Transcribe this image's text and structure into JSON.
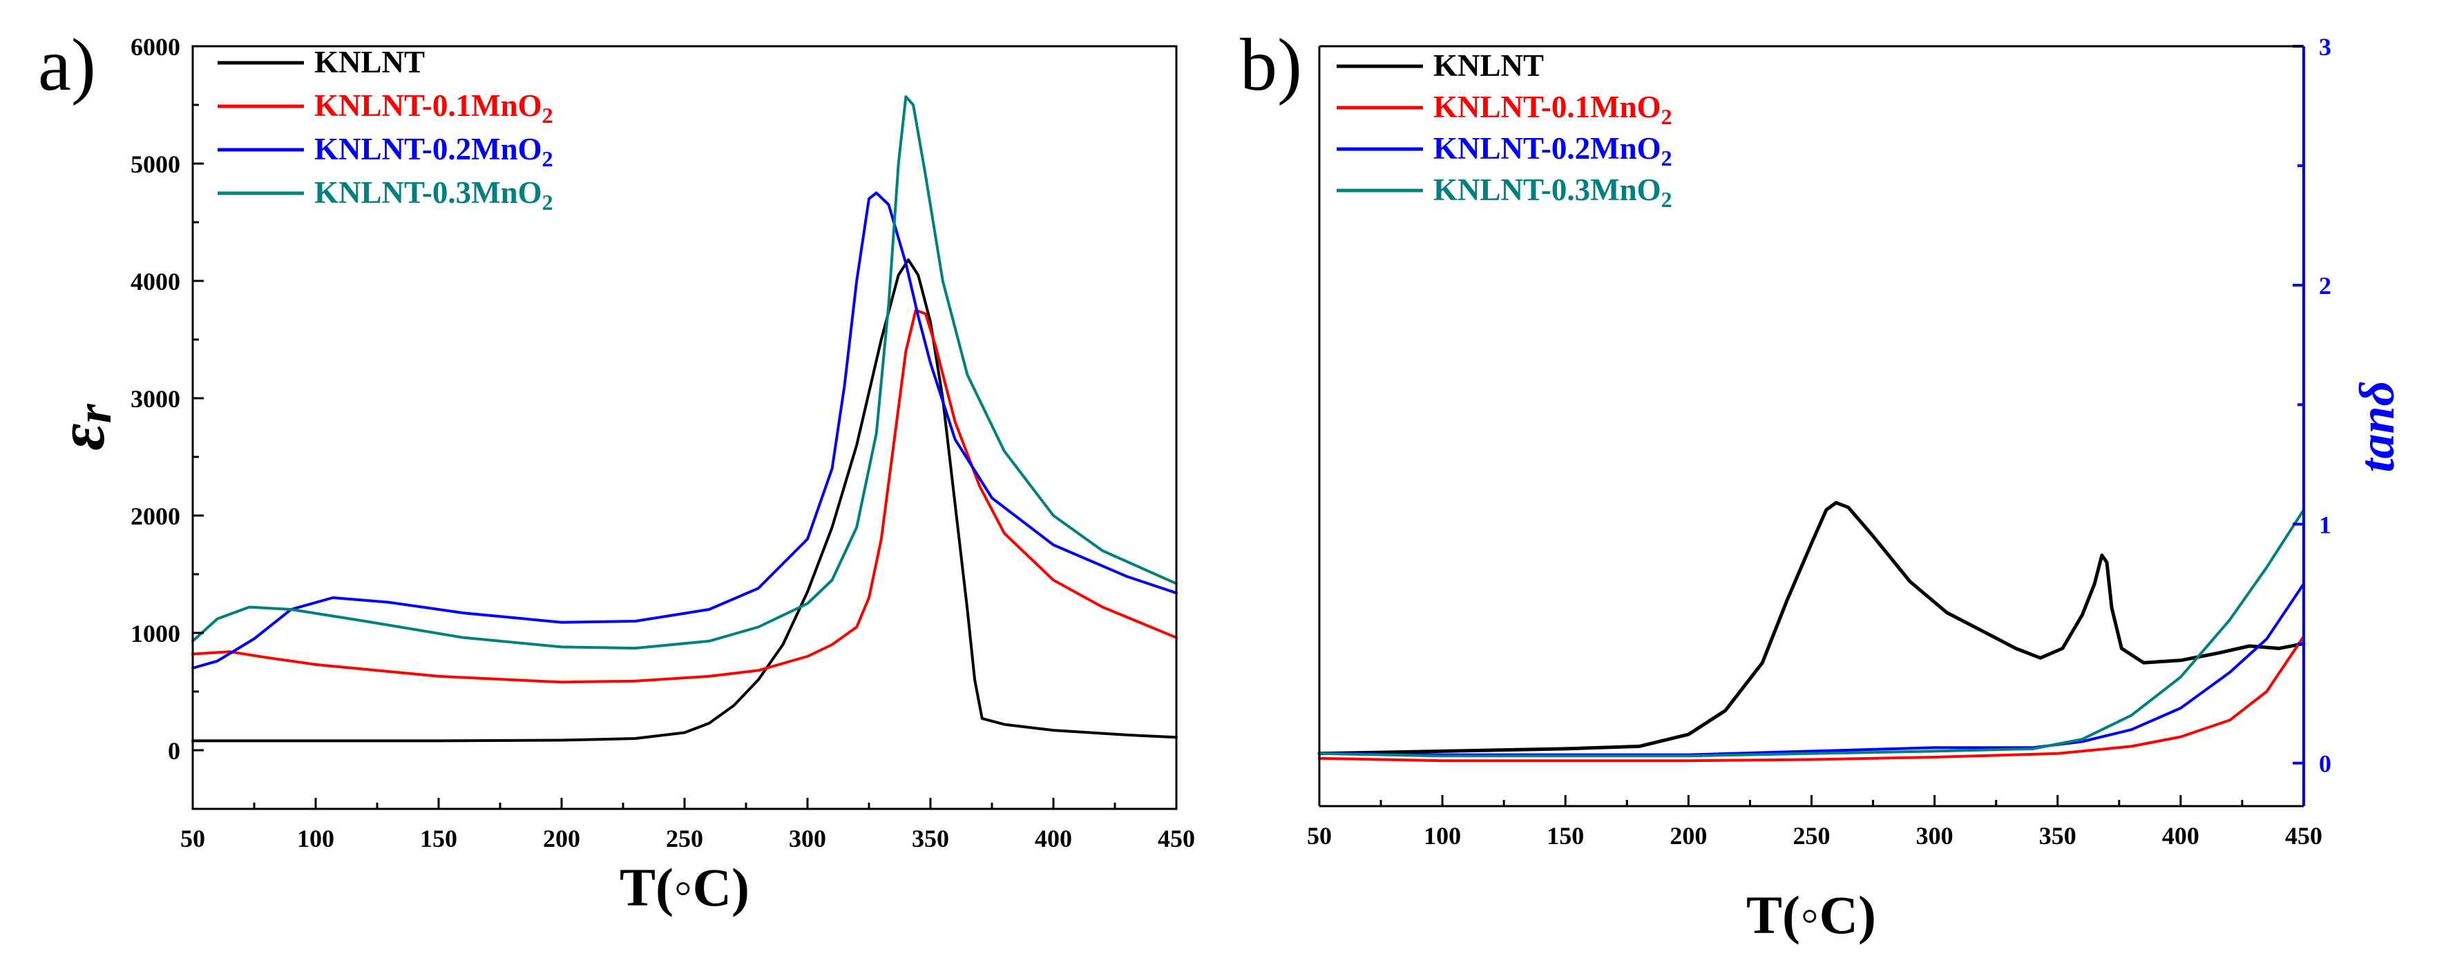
{
  "colors": {
    "KNLNT": "#000000",
    "KNLNT-0.1MnO2": "#ff0000",
    "KNLNT-0.2MnO2": "#0000ff",
    "KNLNT-0.3MnO2": "#008080",
    "right_axis": "#0000ff"
  },
  "chart_data": [
    {
      "type": "line",
      "panel_label": "a)",
      "xlabel": "T(◦C)",
      "ylabel": "εr",
      "xlim": [
        50,
        450
      ],
      "ylim": [
        -500,
        6000
      ],
      "xticks": [
        50,
        100,
        150,
        200,
        250,
        300,
        350,
        400,
        450
      ],
      "yticks": [
        0,
        1000,
        2000,
        3000,
        4000,
        5000,
        6000
      ],
      "legend": {
        "position": "top-left",
        "entries": [
          "KNLNT",
          "KNLNT-0.1MnO2",
          "KNLNT-0.2MnO2",
          "KNLNT-0.3MnO2"
        ]
      },
      "series": [
        {
          "name": "KNLNT",
          "points": [
            [
              50,
              80
            ],
            [
              100,
              80
            ],
            [
              150,
              80
            ],
            [
              200,
              85
            ],
            [
              230,
              100
            ],
            [
              250,
              150
            ],
            [
              260,
              230
            ],
            [
              270,
              380
            ],
            [
              280,
              600
            ],
            [
              290,
              900
            ],
            [
              300,
              1350
            ],
            [
              310,
              1900
            ],
            [
              320,
              2600
            ],
            [
              330,
              3500
            ],
            [
              337,
              4050
            ],
            [
              341,
              4180
            ],
            [
              345,
              4050
            ],
            [
              350,
              3650
            ],
            [
              355,
              3000
            ],
            [
              360,
              2100
            ],
            [
              365,
              1200
            ],
            [
              368,
              600
            ],
            [
              371,
              270
            ],
            [
              380,
              220
            ],
            [
              400,
              170
            ],
            [
              430,
              130
            ],
            [
              450,
              110
            ]
          ]
        },
        {
          "name": "KNLNT-0.1MnO2",
          "points": [
            [
              50,
              820
            ],
            [
              65,
              840
            ],
            [
              80,
              790
            ],
            [
              100,
              730
            ],
            [
              150,
              630
            ],
            [
              200,
              580
            ],
            [
              230,
              590
            ],
            [
              260,
              630
            ],
            [
              280,
              680
            ],
            [
              300,
              800
            ],
            [
              310,
              900
            ],
            [
              320,
              1050
            ],
            [
              325,
              1300
            ],
            [
              330,
              1800
            ],
            [
              335,
              2600
            ],
            [
              340,
              3400
            ],
            [
              344,
              3750
            ],
            [
              348,
              3720
            ],
            [
              352,
              3450
            ],
            [
              360,
              2800
            ],
            [
              370,
              2250
            ],
            [
              380,
              1850
            ],
            [
              400,
              1450
            ],
            [
              420,
              1220
            ],
            [
              450,
              960
            ]
          ]
        },
        {
          "name": "KNLNT-0.2MnO2",
          "points": [
            [
              50,
              700
            ],
            [
              60,
              760
            ],
            [
              75,
              950
            ],
            [
              90,
              1200
            ],
            [
              107,
              1300
            ],
            [
              130,
              1260
            ],
            [
              160,
              1170
            ],
            [
              200,
              1090
            ],
            [
              230,
              1100
            ],
            [
              260,
              1200
            ],
            [
              280,
              1380
            ],
            [
              300,
              1800
            ],
            [
              310,
              2400
            ],
            [
              315,
              3100
            ],
            [
              320,
              4000
            ],
            [
              325,
              4700
            ],
            [
              328,
              4750
            ],
            [
              333,
              4650
            ],
            [
              340,
              4150
            ],
            [
              345,
              3700
            ],
            [
              350,
              3300
            ],
            [
              360,
              2650
            ],
            [
              375,
              2150
            ],
            [
              400,
              1750
            ],
            [
              430,
              1480
            ],
            [
              450,
              1340
            ]
          ]
        },
        {
          "name": "KNLNT-0.3MnO2",
          "points": [
            [
              50,
              930
            ],
            [
              60,
              1120
            ],
            [
              73,
              1220
            ],
            [
              90,
              1200
            ],
            [
              120,
              1100
            ],
            [
              160,
              960
            ],
            [
              200,
              880
            ],
            [
              230,
              870
            ],
            [
              260,
              930
            ],
            [
              280,
              1050
            ],
            [
              300,
              1250
            ],
            [
              310,
              1450
            ],
            [
              320,
              1900
            ],
            [
              328,
              2700
            ],
            [
              333,
              3800
            ],
            [
              337,
              5000
            ],
            [
              340,
              5570
            ],
            [
              343,
              5500
            ],
            [
              348,
              4900
            ],
            [
              355,
              4000
            ],
            [
              365,
              3200
            ],
            [
              380,
              2550
            ],
            [
              400,
              2000
            ],
            [
              420,
              1700
            ],
            [
              450,
              1420
            ]
          ]
        }
      ]
    },
    {
      "type": "line",
      "panel_label": "b)",
      "xlabel": "T(◦C)",
      "ylabel": "tanδ",
      "y_axis_side": "right",
      "xlim": [
        50,
        450
      ],
      "ylim": [
        -0.18,
        3.0
      ],
      "xticks": [
        50,
        100,
        150,
        200,
        250,
        300,
        350,
        400,
        450
      ],
      "yticks": [
        0,
        1,
        2,
        3
      ],
      "legend": {
        "position": "top-left",
        "entries": [
          "KNLNT",
          "KNLNT-0.1MnO2",
          "KNLNT-0.2MnO2",
          "KNLNT-0.3MnO2"
        ]
      },
      "series": [
        {
          "name": "KNLNT",
          "points": [
            [
              50,
              0.04
            ],
            [
              100,
              0.05
            ],
            [
              150,
              0.06
            ],
            [
              180,
              0.07
            ],
            [
              200,
              0.12
            ],
            [
              215,
              0.22
            ],
            [
              230,
              0.42
            ],
            [
              240,
              0.68
            ],
            [
              250,
              0.92
            ],
            [
              256,
              1.06
            ],
            [
              260,
              1.09
            ],
            [
              265,
              1.07
            ],
            [
              275,
              0.95
            ],
            [
              290,
              0.76
            ],
            [
              305,
              0.63
            ],
            [
              320,
              0.55
            ],
            [
              333,
              0.48
            ],
            [
              343,
              0.44
            ],
            [
              352,
              0.48
            ],
            [
              360,
              0.62
            ],
            [
              365,
              0.75
            ],
            [
              368,
              0.87
            ],
            [
              370,
              0.84
            ],
            [
              372,
              0.65
            ],
            [
              376,
              0.48
            ],
            [
              385,
              0.42
            ],
            [
              400,
              0.43
            ],
            [
              415,
              0.46
            ],
            [
              428,
              0.49
            ],
            [
              440,
              0.48
            ],
            [
              450,
              0.5
            ]
          ]
        },
        {
          "name": "KNLNT-0.1MnO2",
          "points": [
            [
              50,
              0.02
            ],
            [
              100,
              0.01
            ],
            [
              150,
              0.01
            ],
            [
              200,
              0.01
            ],
            [
              250,
              0.015
            ],
            [
              300,
              0.025
            ],
            [
              350,
              0.04
            ],
            [
              380,
              0.07
            ],
            [
              400,
              0.11
            ],
            [
              420,
              0.18
            ],
            [
              435,
              0.3
            ],
            [
              450,
              0.53
            ]
          ]
        },
        {
          "name": "KNLNT-0.2MnO2",
          "points": [
            [
              50,
              0.04
            ],
            [
              100,
              0.035
            ],
            [
              150,
              0.035
            ],
            [
              200,
              0.035
            ],
            [
              250,
              0.05
            ],
            [
              300,
              0.065
            ],
            [
              340,
              0.065
            ],
            [
              360,
              0.09
            ],
            [
              380,
              0.14
            ],
            [
              400,
              0.23
            ],
            [
              420,
              0.38
            ],
            [
              435,
              0.52
            ],
            [
              450,
              0.75
            ]
          ]
        },
        {
          "name": "KNLNT-0.3MnO2",
          "points": [
            [
              50,
              0.04
            ],
            [
              100,
              0.03
            ],
            [
              150,
              0.03
            ],
            [
              200,
              0.03
            ],
            [
              250,
              0.04
            ],
            [
              300,
              0.05
            ],
            [
              340,
              0.06
            ],
            [
              360,
              0.1
            ],
            [
              380,
              0.2
            ],
            [
              400,
              0.36
            ],
            [
              420,
              0.6
            ],
            [
              435,
              0.82
            ],
            [
              450,
              1.06
            ]
          ]
        }
      ]
    }
  ]
}
